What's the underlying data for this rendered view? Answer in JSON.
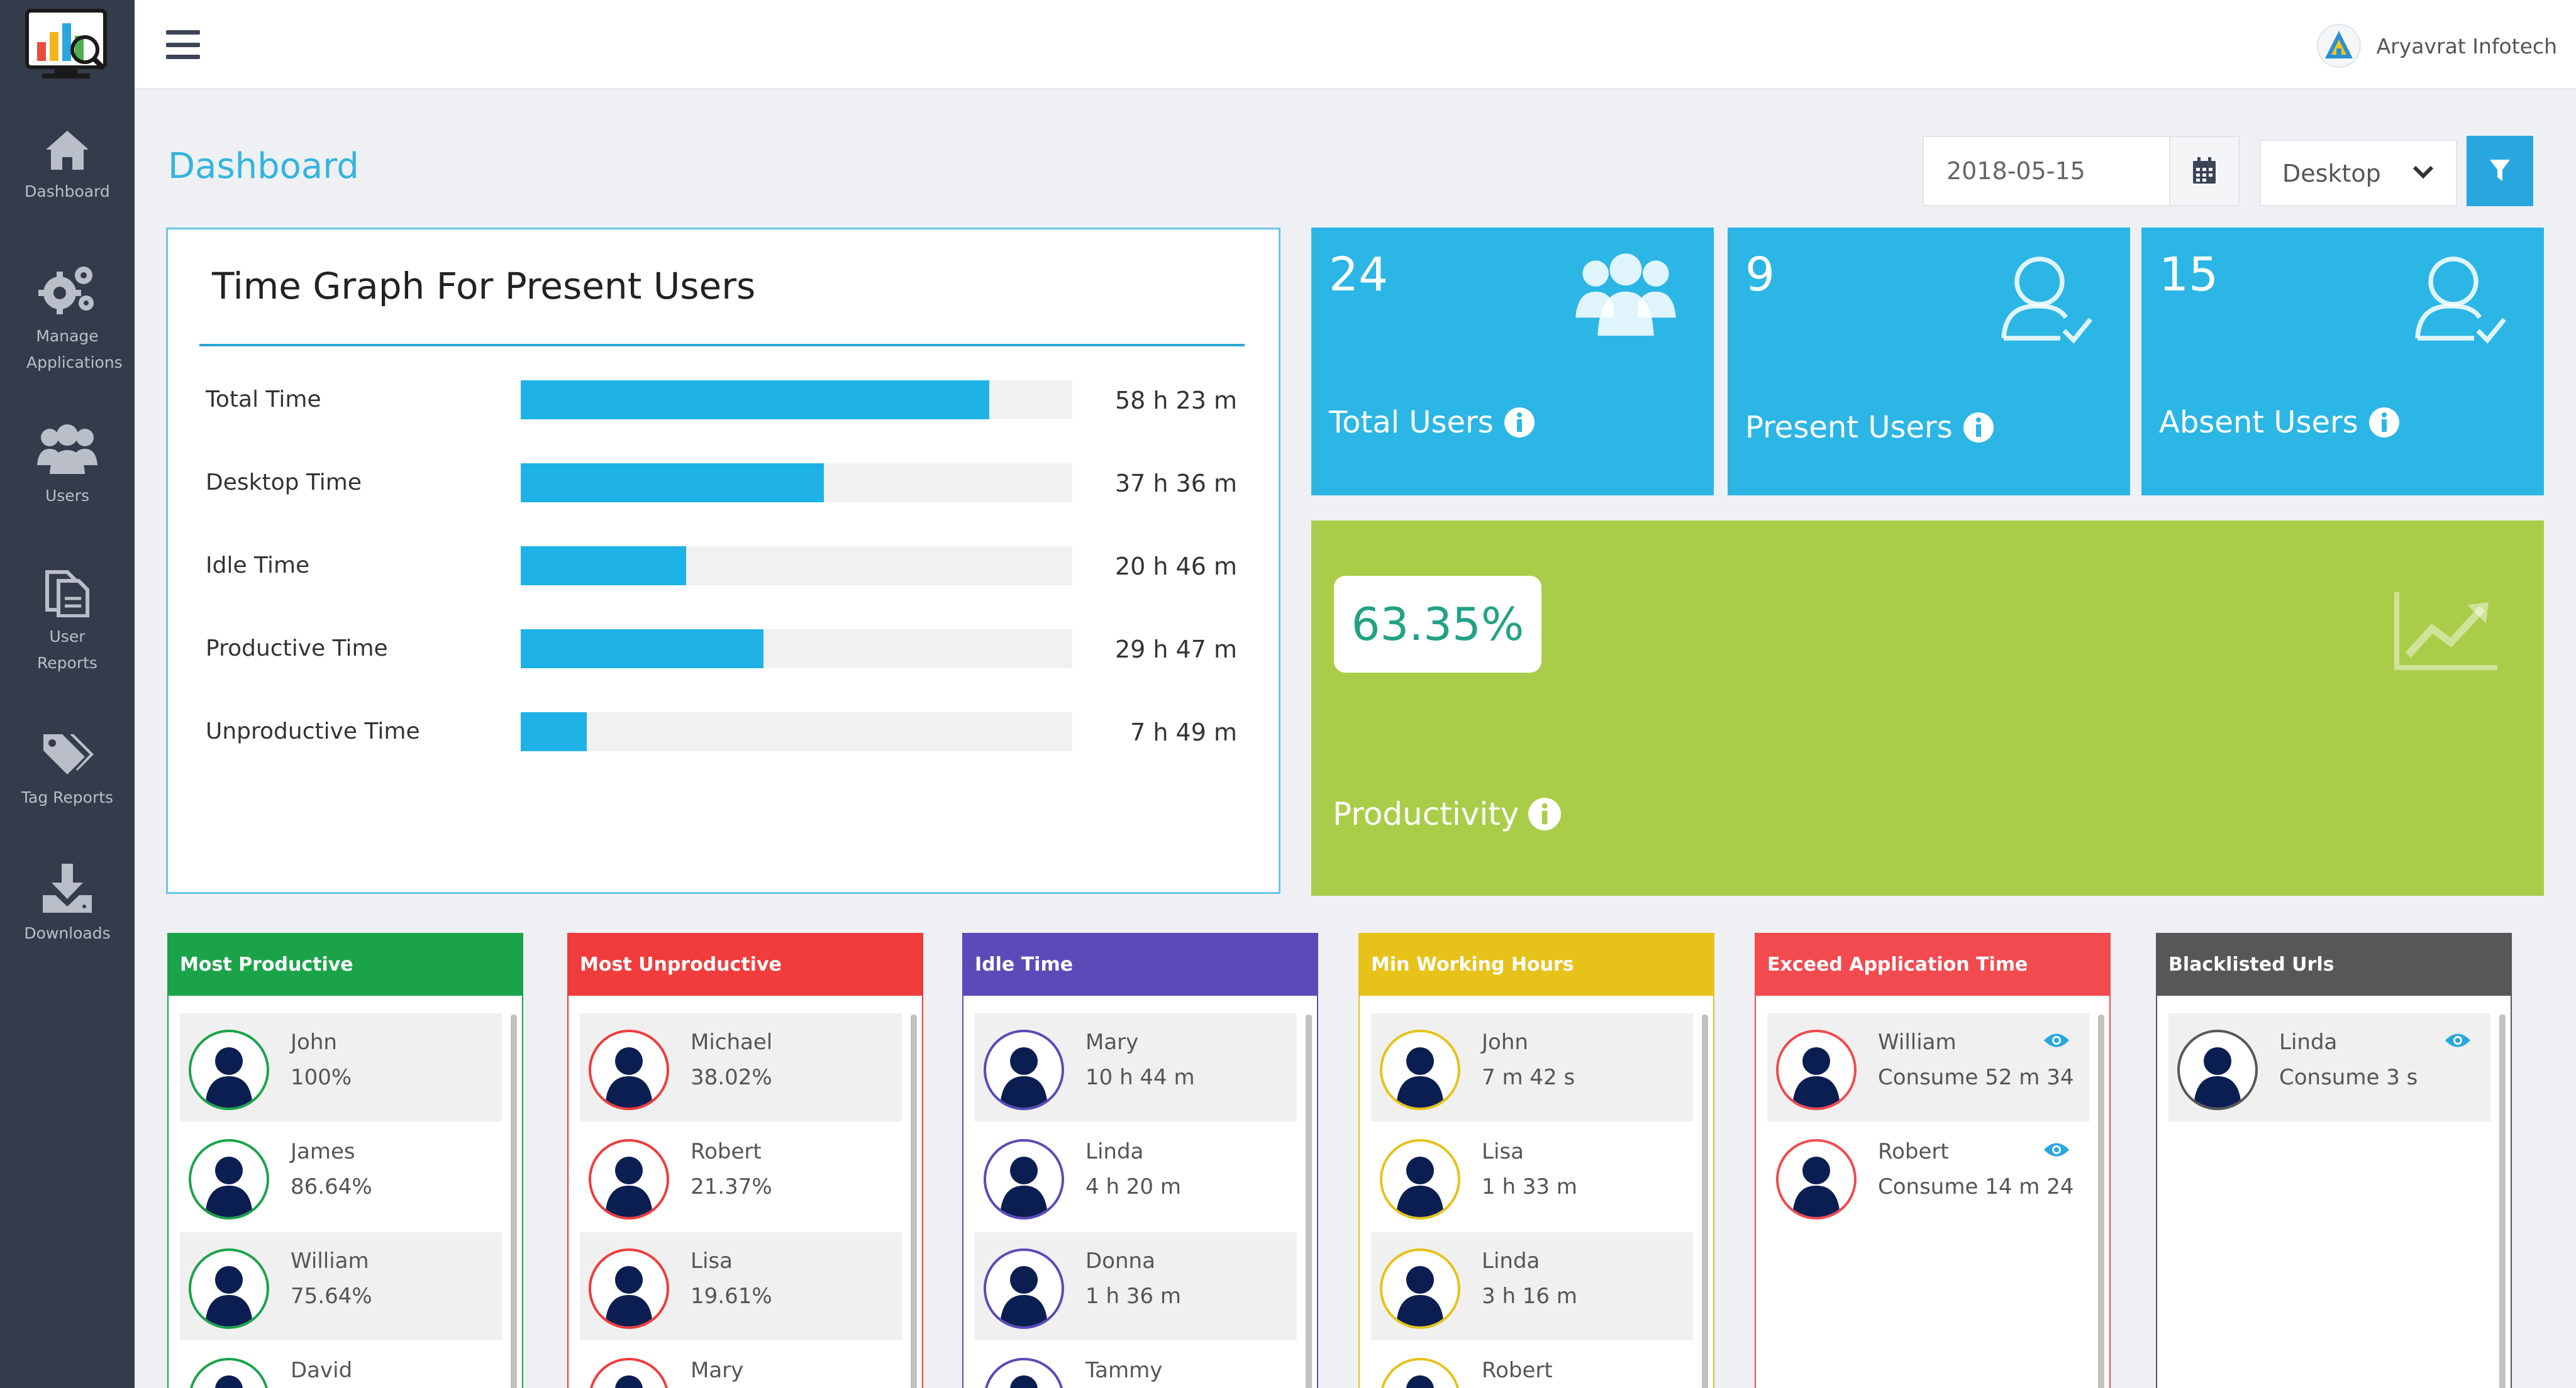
{
  "app": {
    "company_name": "Aryavrat Infotech"
  },
  "sidebar": {
    "items": [
      {
        "label": "Dashboard",
        "icon": "home-icon"
      },
      {
        "label": "Manage Applications",
        "icon": "gears-icon"
      },
      {
        "label": "Users",
        "icon": "users-icon"
      },
      {
        "label": "User Reports",
        "icon": "reports-icon"
      },
      {
        "label": "Tag Reports",
        "icon": "tags-icon"
      },
      {
        "label": "Downloads",
        "icon": "download-icon"
      }
    ]
  },
  "page": {
    "title": "Dashboard"
  },
  "controls": {
    "date": "2018-05-15",
    "device": "Desktop"
  },
  "time_graph": {
    "title": "Time Graph For Present Users",
    "rows": [
      {
        "label": "Total Time",
        "value": "58 h 23 m",
        "fraction": 0.85
      },
      {
        "label": "Desktop Time",
        "value": "37 h 36 m",
        "fraction": 0.55
      },
      {
        "label": "Idle Time",
        "value": "20 h 46 m",
        "fraction": 0.3
      },
      {
        "label": "Productive Time",
        "value": "29 h 47 m",
        "fraction": 0.44
      },
      {
        "label": "Unproductive Time",
        "value": "7 h 49 m",
        "fraction": 0.12
      }
    ]
  },
  "stats": {
    "total": {
      "count": "24",
      "label": "Total Users"
    },
    "present": {
      "count": "9",
      "label": "Present Users"
    },
    "absent": {
      "count": "15",
      "label": "Absent Users"
    }
  },
  "productivity": {
    "value": "63.35%",
    "label": "Productivity"
  },
  "colors": {
    "accent": "#2bb6e5",
    "productivity": "#a9cd49",
    "most_productive": "#1ba34a",
    "most_unproductive": "#f03c3c",
    "idle_time": "#5a4bb8",
    "min_working_hours": "#e6c21a",
    "exceed_application_time": "#f14a4f",
    "blacklisted_urls": "#575757"
  },
  "lists": {
    "most_productive": {
      "title": "Most Productive",
      "items": [
        {
          "name": "John",
          "value": "100%"
        },
        {
          "name": "James",
          "value": "86.64%"
        },
        {
          "name": "William",
          "value": "75.64%"
        },
        {
          "name": "David",
          "value": ""
        }
      ]
    },
    "most_unproductive": {
      "title": "Most Unproductive",
      "items": [
        {
          "name": "Michael",
          "value": "38.02%"
        },
        {
          "name": "Robert",
          "value": "21.37%"
        },
        {
          "name": "Lisa",
          "value": "19.61%"
        },
        {
          "name": "Mary",
          "value": ""
        }
      ]
    },
    "idle_time": {
      "title": "Idle Time",
      "items": [
        {
          "name": "Mary",
          "value": "10 h 44 m"
        },
        {
          "name": "Linda",
          "value": "4 h 20 m"
        },
        {
          "name": "Donna",
          "value": "1 h 36 m"
        },
        {
          "name": "Tammy",
          "value": ""
        }
      ]
    },
    "min_working_hours": {
      "title": "Min Working Hours",
      "items": [
        {
          "name": "John",
          "value": "7 m 42 s"
        },
        {
          "name": "Lisa",
          "value": "1 h 33 m"
        },
        {
          "name": "Linda",
          "value": "3 h 16 m"
        },
        {
          "name": "Robert",
          "value": ""
        }
      ]
    },
    "exceed_application_time": {
      "title": "Exceed Application Time",
      "items": [
        {
          "name": "William",
          "value": "Consume 52 m 34"
        },
        {
          "name": "Robert",
          "value": "Consume 14 m 24"
        }
      ]
    },
    "blacklisted_urls": {
      "title": "Blacklisted Urls",
      "items": [
        {
          "name": "Linda",
          "value": "Consume 3 s"
        }
      ]
    }
  }
}
